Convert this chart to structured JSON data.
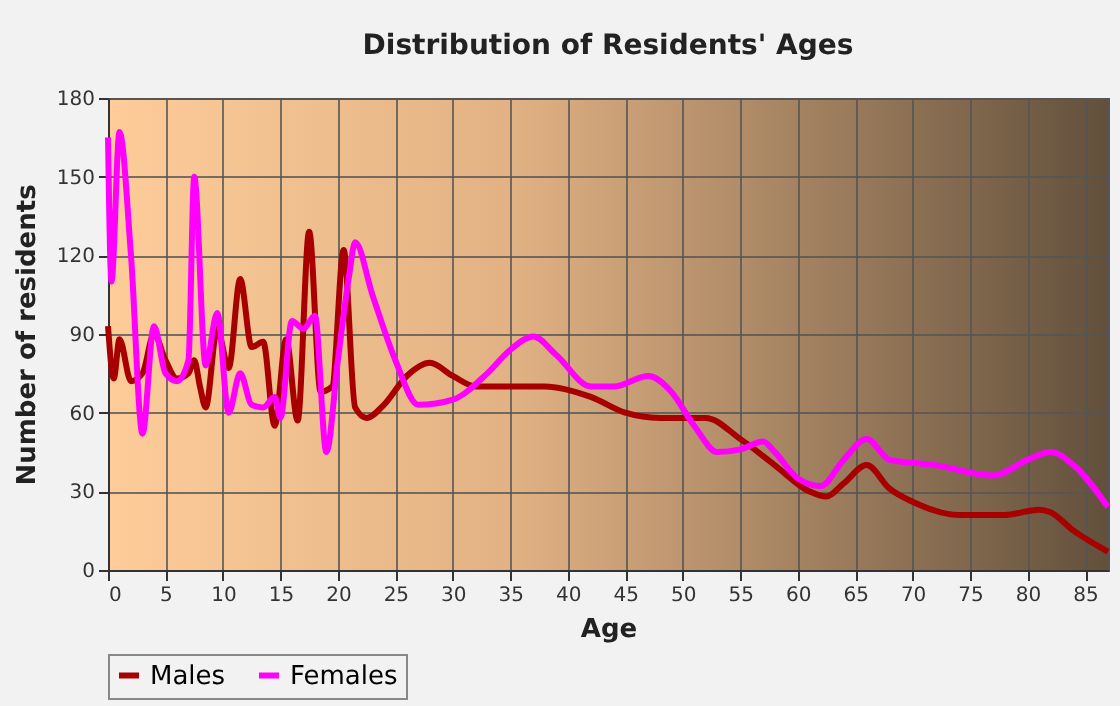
{
  "chart_data": {
    "type": "line",
    "title": "Distribution of Residents' Ages",
    "xlabel": "Age",
    "ylabel": "Number of residents",
    "xlim": [
      0,
      87
    ],
    "xticks": [
      0,
      5,
      10,
      15,
      20,
      25,
      30,
      35,
      40,
      45,
      50,
      55,
      60,
      65,
      70,
      75,
      80,
      85
    ],
    "ylim": [
      0,
      180
    ],
    "yticks": [
      0,
      30,
      60,
      90,
      120,
      150,
      180
    ],
    "grid": true,
    "legend": "bottom",
    "marker": "none",
    "line_style": "solid",
    "series": [
      {
        "name": "Males",
        "color": "#a80000",
        "x": [
          0,
          0.5,
          1,
          2,
          3,
          4,
          5,
          6,
          7,
          7.5,
          8,
          8.5,
          9.5,
          10.5,
          11.5,
          12.5,
          13.5,
          14.5,
          15.5,
          16.5,
          17.5,
          18.5,
          19.5,
          20.5,
          21.5,
          22.5,
          24,
          26,
          28,
          30,
          32,
          35,
          38,
          42,
          45,
          48,
          52,
          55,
          58,
          61,
          62.5,
          64,
          66,
          68,
          70,
          74,
          78,
          81,
          82,
          84,
          87
        ],
        "values": [
          93,
          73,
          88,
          72,
          75,
          90,
          80,
          73,
          75,
          80,
          70,
          62,
          92,
          77,
          111,
          85,
          87,
          55,
          88,
          57,
          129,
          68,
          70,
          122,
          62,
          58,
          63,
          74,
          79,
          74,
          70,
          70,
          70,
          66,
          60,
          58,
          58,
          50,
          40,
          30,
          28,
          33,
          40,
          31,
          26,
          21,
          21,
          23,
          22,
          15,
          7
        ]
      },
      {
        "name": "Females",
        "color": "#ff00ff",
        "x": [
          0,
          0.3,
          1,
          2,
          3,
          4,
          5,
          6,
          7,
          7.5,
          8.5,
          9.5,
          10.5,
          11.5,
          12.5,
          13.5,
          14.5,
          15,
          16,
          17,
          18,
          19,
          20,
          21,
          21.5,
          23,
          25,
          27,
          30,
          33,
          35,
          37,
          39,
          42,
          44,
          47,
          49,
          51,
          53,
          55,
          57,
          58,
          60,
          62,
          64,
          66,
          68,
          72,
          77,
          80,
          82,
          84,
          87
        ],
        "values": [
          165,
          110,
          167,
          120,
          52,
          93,
          75,
          72,
          80,
          150,
          78,
          98,
          60,
          75,
          63,
          62,
          66,
          58,
          95,
          92,
          97,
          45,
          80,
          113,
          125,
          105,
          80,
          63,
          65,
          75,
          84,
          89,
          82,
          70,
          70,
          74,
          68,
          55,
          45,
          46,
          49,
          45,
          35,
          32,
          42,
          50,
          42,
          40,
          36,
          42,
          45,
          40,
          24
        ]
      }
    ]
  }
}
